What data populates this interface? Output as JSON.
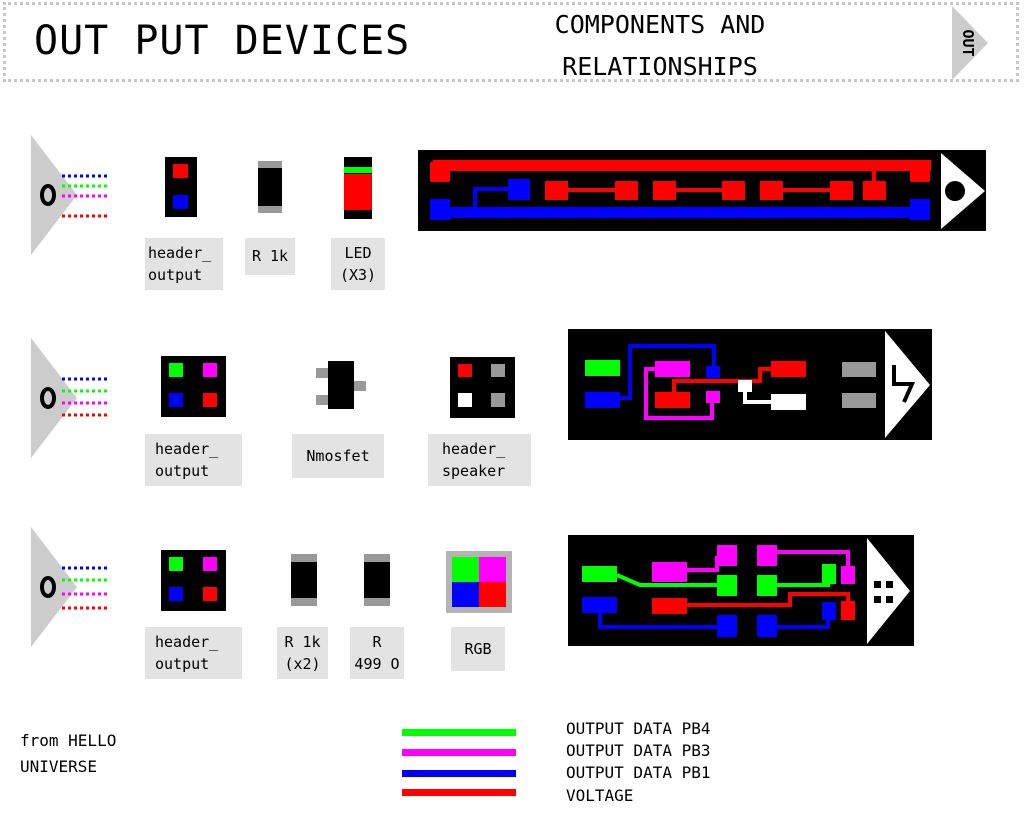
{
  "header": {
    "title": "OUT PUT DEVICES",
    "subtitle_line1": "COMPONENTS AND",
    "subtitle_line2": "RELATIONSHIPS",
    "tab_label": "OUT"
  },
  "rows": [
    {
      "labels": {
        "header": "header_\noutput",
        "resistor": "R 1k",
        "led": "LED\n(X3)"
      }
    },
    {
      "labels": {
        "header": "header_\noutput",
        "mosfet": "Nmosfet",
        "speaker": "header_\nspeaker"
      }
    },
    {
      "labels": {
        "header": "header_\noutput",
        "r1k": "R 1k\n(x2)",
        "r499": "R\n499 O",
        "rgb": "RGB"
      }
    }
  ],
  "footer": {
    "credit": "from HELLO\nUNIVERSE"
  },
  "legend": [
    {
      "label": "OUTPUT DATA PB4",
      "color": "#00ff00"
    },
    {
      "label": "OUTPUT DATA PB3",
      "color": "#ff00ff"
    },
    {
      "label": "OUTPUT DATA PB1",
      "color": "#0000ff"
    },
    {
      "label": "VOLTAGE",
      "color": "#ff0000"
    }
  ],
  "colors": {
    "green": "#00ff00",
    "magenta": "#ff00ff",
    "blue": "#0000ff",
    "red": "#ff0000",
    "gray": "#999999",
    "panel": "#000000",
    "tab": "#cccccc"
  }
}
